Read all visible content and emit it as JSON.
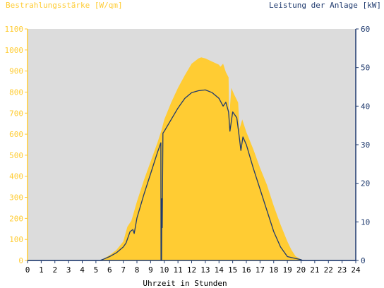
{
  "chart_data": {
    "type": "area",
    "left_axis_title": "Bestrahlungsstärke [W/qm]",
    "right_axis_title": "Leistung der Anlage [kW]",
    "xlabel": "Uhrzeit in Stunden",
    "xlim": [
      0,
      24
    ],
    "ylim_left": [
      0,
      1100
    ],
    "ylim_right": [
      0,
      60
    ],
    "x_ticks": [
      "0",
      "1",
      "2",
      "3",
      "4",
      "5",
      "6",
      "7",
      "8",
      "9",
      "10",
      "11",
      "12",
      "13",
      "14",
      "15",
      "16",
      "17",
      "18",
      "19",
      "20",
      "21",
      "22",
      "23",
      "24"
    ],
    "y_left_ticks": [
      "0",
      "100",
      "200",
      "300",
      "400",
      "500",
      "600",
      "700",
      "800",
      "900",
      "1000",
      "1100"
    ],
    "y_right_ticks": [
      "0",
      "10",
      "20",
      "30",
      "40",
      "50",
      "60"
    ],
    "grid": false,
    "colors": {
      "irradiance": "#ffcc33",
      "power": "#1f3a6e",
      "plot_background": "#dcdcdc",
      "left_axis": "#ffcc33",
      "right_axis": "#1f3a6e"
    },
    "series": [
      {
        "axis": "left",
        "style": "filled-area",
        "points": [
          [
            0,
            0
          ],
          [
            5.3,
            0
          ],
          [
            5.6,
            10
          ],
          [
            6,
            25
          ],
          [
            6.5,
            50
          ],
          [
            7,
            90
          ],
          [
            7.3,
            160
          ],
          [
            7.6,
            190
          ],
          [
            8,
            280
          ],
          [
            8.5,
            380
          ],
          [
            9,
            470
          ],
          [
            9.5,
            560
          ],
          [
            9.8,
            620
          ],
          [
            10,
            670
          ],
          [
            10.5,
            750
          ],
          [
            11,
            820
          ],
          [
            11.5,
            880
          ],
          [
            12,
            935
          ],
          [
            12.5,
            960
          ],
          [
            12.7,
            965
          ],
          [
            13,
            960
          ],
          [
            13.5,
            945
          ],
          [
            14,
            930
          ],
          [
            14.1,
            920
          ],
          [
            14.3,
            935
          ],
          [
            14.5,
            895
          ],
          [
            14.7,
            870
          ],
          [
            14.75,
            680
          ],
          [
            14.9,
            820
          ],
          [
            15.1,
            790
          ],
          [
            15.4,
            750
          ],
          [
            15.5,
            625
          ],
          [
            15.7,
            670
          ],
          [
            16,
            610
          ],
          [
            16.5,
            530
          ],
          [
            17,
            440
          ],
          [
            17.5,
            360
          ],
          [
            18,
            260
          ],
          [
            18.5,
            170
          ],
          [
            19,
            90
          ],
          [
            19.3,
            50
          ],
          [
            19.6,
            20
          ],
          [
            20,
            5
          ],
          [
            20.1,
            0
          ],
          [
            24,
            0
          ]
        ]
      },
      {
        "axis": "right",
        "style": "line",
        "points": [
          [
            0,
            0
          ],
          [
            5.3,
            0
          ],
          [
            5.6,
            0.4
          ],
          [
            6,
            1
          ],
          [
            6.5,
            2
          ],
          [
            7,
            3.5
          ],
          [
            7.2,
            4.5
          ],
          [
            7.5,
            7.5
          ],
          [
            7.7,
            8
          ],
          [
            7.8,
            7
          ],
          [
            8,
            11
          ],
          [
            8.5,
            17
          ],
          [
            9,
            22.5
          ],
          [
            9.5,
            28
          ],
          [
            9.75,
            30.5
          ],
          [
            9.76,
            0
          ],
          [
            9.8,
            0
          ],
          [
            9.82,
            16
          ],
          [
            9.85,
            8.5
          ],
          [
            9.9,
            33
          ],
          [
            10,
            33.5
          ],
          [
            10.5,
            36.5
          ],
          [
            11,
            39.5
          ],
          [
            11.5,
            42
          ],
          [
            12,
            43.5
          ],
          [
            12.5,
            44
          ],
          [
            13,
            44.2
          ],
          [
            13.5,
            43.5
          ],
          [
            14,
            42
          ],
          [
            14.3,
            40
          ],
          [
            14.5,
            41
          ],
          [
            14.7,
            38.5
          ],
          [
            14.8,
            33.5
          ],
          [
            15,
            38.5
          ],
          [
            15.3,
            37
          ],
          [
            15.5,
            31.5
          ],
          [
            15.6,
            28.5
          ],
          [
            15.75,
            32
          ],
          [
            16,
            30
          ],
          [
            16.5,
            24
          ],
          [
            17,
            18.5
          ],
          [
            17.5,
            13
          ],
          [
            18,
            7.5
          ],
          [
            18.5,
            3.5
          ],
          [
            19,
            1
          ],
          [
            19.5,
            0.6
          ],
          [
            20,
            0.2
          ],
          [
            20.1,
            0
          ],
          [
            24,
            0
          ]
        ]
      }
    ]
  }
}
